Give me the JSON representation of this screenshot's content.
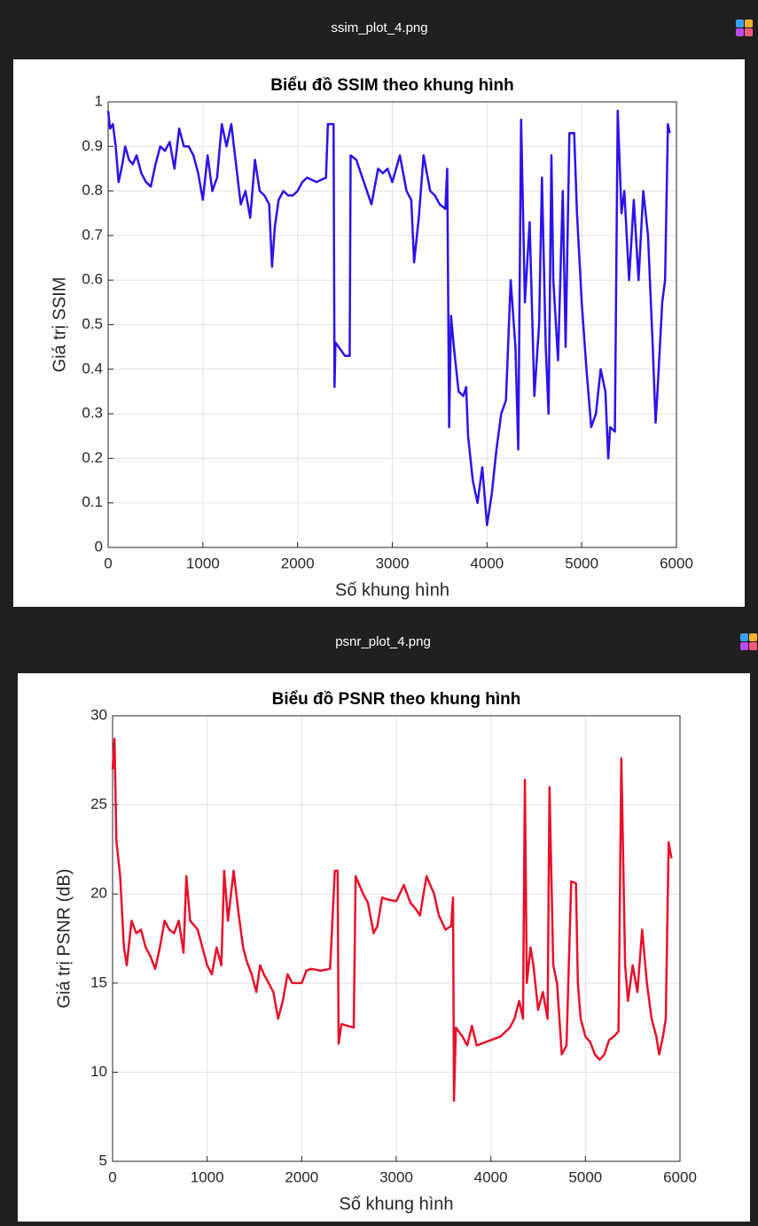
{
  "panels": [
    {
      "filename": "ssim_plot_4.png"
    },
    {
      "filename": "psnr_plot_4.png"
    }
  ],
  "chart_data": [
    {
      "type": "line",
      "title": "Biểu đồ SSIM theo khung hình",
      "xlabel": "Số khung hình",
      "ylabel": "Giá trị SSIM",
      "color": "#2a12f0",
      "grid": true,
      "xlim": [
        0,
        6000
      ],
      "xticks": [
        0,
        1000,
        2000,
        3000,
        4000,
        5000,
        6000
      ],
      "ylim": [
        0,
        1
      ],
      "yticks": [
        0,
        0.1,
        0.2,
        0.3,
        0.4,
        0.5,
        0.6,
        0.7,
        0.8,
        0.9,
        1
      ],
      "x": [
        0,
        20,
        50,
        80,
        110,
        150,
        180,
        220,
        260,
        300,
        350,
        400,
        450,
        500,
        550,
        600,
        650,
        700,
        750,
        800,
        850,
        900,
        950,
        1000,
        1050,
        1100,
        1150,
        1200,
        1250,
        1300,
        1350,
        1400,
        1450,
        1500,
        1550,
        1600,
        1650,
        1700,
        1730,
        1760,
        1800,
        1850,
        1900,
        1950,
        2000,
        2050,
        2100,
        2200,
        2300,
        2320,
        2380,
        2390,
        2400,
        2500,
        2550,
        2560,
        2620,
        2700,
        2780,
        2850,
        2900,
        2950,
        3000,
        3080,
        3150,
        3200,
        3230,
        3280,
        3330,
        3400,
        3450,
        3500,
        3560,
        3580,
        3600,
        3620,
        3650,
        3700,
        3750,
        3780,
        3800,
        3850,
        3900,
        3950,
        4000,
        4050,
        4100,
        4150,
        4200,
        4250,
        4300,
        4330,
        4360,
        4400,
        4450,
        4500,
        4550,
        4580,
        4620,
        4650,
        4680,
        4700,
        4750,
        4800,
        4830,
        4870,
        4920,
        4950,
        5000,
        5050,
        5100,
        5150,
        5200,
        5250,
        5280,
        5300,
        5350,
        5380,
        5420,
        5450,
        5500,
        5550,
        5600,
        5650,
        5700,
        5750,
        5780,
        5800,
        5850,
        5880,
        5910,
        5930
      ],
      "values": [
        0.98,
        0.94,
        0.95,
        0.9,
        0.82,
        0.86,
        0.9,
        0.87,
        0.86,
        0.88,
        0.84,
        0.82,
        0.81,
        0.86,
        0.9,
        0.89,
        0.91,
        0.85,
        0.94,
        0.9,
        0.9,
        0.88,
        0.84,
        0.78,
        0.88,
        0.8,
        0.83,
        0.95,
        0.9,
        0.95,
        0.86,
        0.77,
        0.8,
        0.74,
        0.87,
        0.8,
        0.79,
        0.77,
        0.63,
        0.72,
        0.78,
        0.8,
        0.79,
        0.79,
        0.8,
        0.82,
        0.83,
        0.82,
        0.83,
        0.95,
        0.95,
        0.36,
        0.46,
        0.43,
        0.43,
        0.88,
        0.87,
        0.82,
        0.77,
        0.85,
        0.84,
        0.85,
        0.82,
        0.88,
        0.8,
        0.78,
        0.64,
        0.74,
        0.88,
        0.8,
        0.79,
        0.77,
        0.76,
        0.85,
        0.27,
        0.52,
        0.45,
        0.35,
        0.34,
        0.36,
        0.25,
        0.15,
        0.1,
        0.18,
        0.05,
        0.12,
        0.22,
        0.3,
        0.33,
        0.6,
        0.45,
        0.22,
        0.96,
        0.55,
        0.73,
        0.34,
        0.5,
        0.83,
        0.45,
        0.3,
        0.88,
        0.6,
        0.42,
        0.8,
        0.45,
        0.93,
        0.93,
        0.75,
        0.55,
        0.4,
        0.27,
        0.3,
        0.4,
        0.35,
        0.2,
        0.27,
        0.26,
        0.98,
        0.75,
        0.8,
        0.6,
        0.78,
        0.6,
        0.8,
        0.7,
        0.45,
        0.28,
        0.35,
        0.55,
        0.6,
        0.95,
        0.93
      ]
    },
    {
      "type": "line",
      "title": "Biểu đồ PSNR theo khung hình",
      "xlabel": "Số khung hình",
      "ylabel": "Giá trị PSNR (dB)",
      "color": "#e8102a",
      "grid": true,
      "xlim": [
        0,
        6000
      ],
      "xticks": [
        0,
        1000,
        2000,
        3000,
        4000,
        5000,
        6000
      ],
      "ylim": [
        5,
        30
      ],
      "yticks": [
        5,
        10,
        15,
        20,
        25,
        30
      ],
      "x": [
        0,
        20,
        40,
        60,
        80,
        120,
        150,
        200,
        250,
        300,
        350,
        400,
        450,
        500,
        550,
        600,
        650,
        700,
        750,
        780,
        820,
        900,
        950,
        1000,
        1050,
        1100,
        1150,
        1180,
        1220,
        1280,
        1330,
        1380,
        1420,
        1470,
        1520,
        1560,
        1600,
        1650,
        1700,
        1750,
        1800,
        1850,
        1900,
        2000,
        2050,
        2100,
        2200,
        2300,
        2350,
        2380,
        2390,
        2420,
        2550,
        2570,
        2650,
        2700,
        2760,
        2800,
        2850,
        2900,
        3000,
        3080,
        3150,
        3200,
        3250,
        3320,
        3400,
        3450,
        3520,
        3580,
        3600,
        3610,
        3630,
        3700,
        3750,
        3800,
        3850,
        3900,
        4000,
        4100,
        4200,
        4250,
        4300,
        4340,
        4360,
        4380,
        4420,
        4450,
        4500,
        4550,
        4600,
        4620,
        4660,
        4700,
        4750,
        4800,
        4850,
        4900,
        4920,
        4950,
        5000,
        5050,
        5100,
        5150,
        5200,
        5250,
        5300,
        5350,
        5380,
        5420,
        5450,
        5500,
        5550,
        5600,
        5650,
        5700,
        5750,
        5780,
        5820,
        5850,
        5880,
        5910
      ],
      "values": [
        27,
        28.7,
        23,
        22,
        21,
        17,
        16,
        18.5,
        17.8,
        18,
        17,
        16.5,
        15.8,
        17,
        18.5,
        18,
        17.8,
        18.5,
        16.7,
        21,
        18.5,
        18,
        17,
        16,
        15.5,
        17,
        16,
        21.3,
        18.5,
        21.3,
        19,
        17,
        16.2,
        15.5,
        14.5,
        16,
        15.5,
        15,
        14.5,
        13,
        14,
        15.5,
        15,
        15,
        15.7,
        15.8,
        15.7,
        15.8,
        21.3,
        21.3,
        11.6,
        12.7,
        12.5,
        21,
        20,
        19.5,
        17.8,
        18.2,
        19.8,
        19.7,
        19.6,
        20.5,
        19.5,
        19.2,
        18.8,
        21,
        20,
        18.8,
        18,
        18.2,
        19.8,
        8.4,
        12.5,
        12,
        11.5,
        12.6,
        11.5,
        11.6,
        11.8,
        12,
        12.5,
        13,
        14,
        13,
        26.4,
        15,
        17,
        16,
        13.5,
        14.5,
        13,
        26,
        16,
        15,
        11,
        11.5,
        20.7,
        20.6,
        15,
        13,
        12,
        11.7,
        11,
        10.7,
        11,
        11.8,
        12,
        12.3,
        27.6,
        16,
        14,
        16,
        14.5,
        18,
        15,
        13,
        12,
        11,
        12,
        13,
        22.9,
        22
      ]
    }
  ]
}
